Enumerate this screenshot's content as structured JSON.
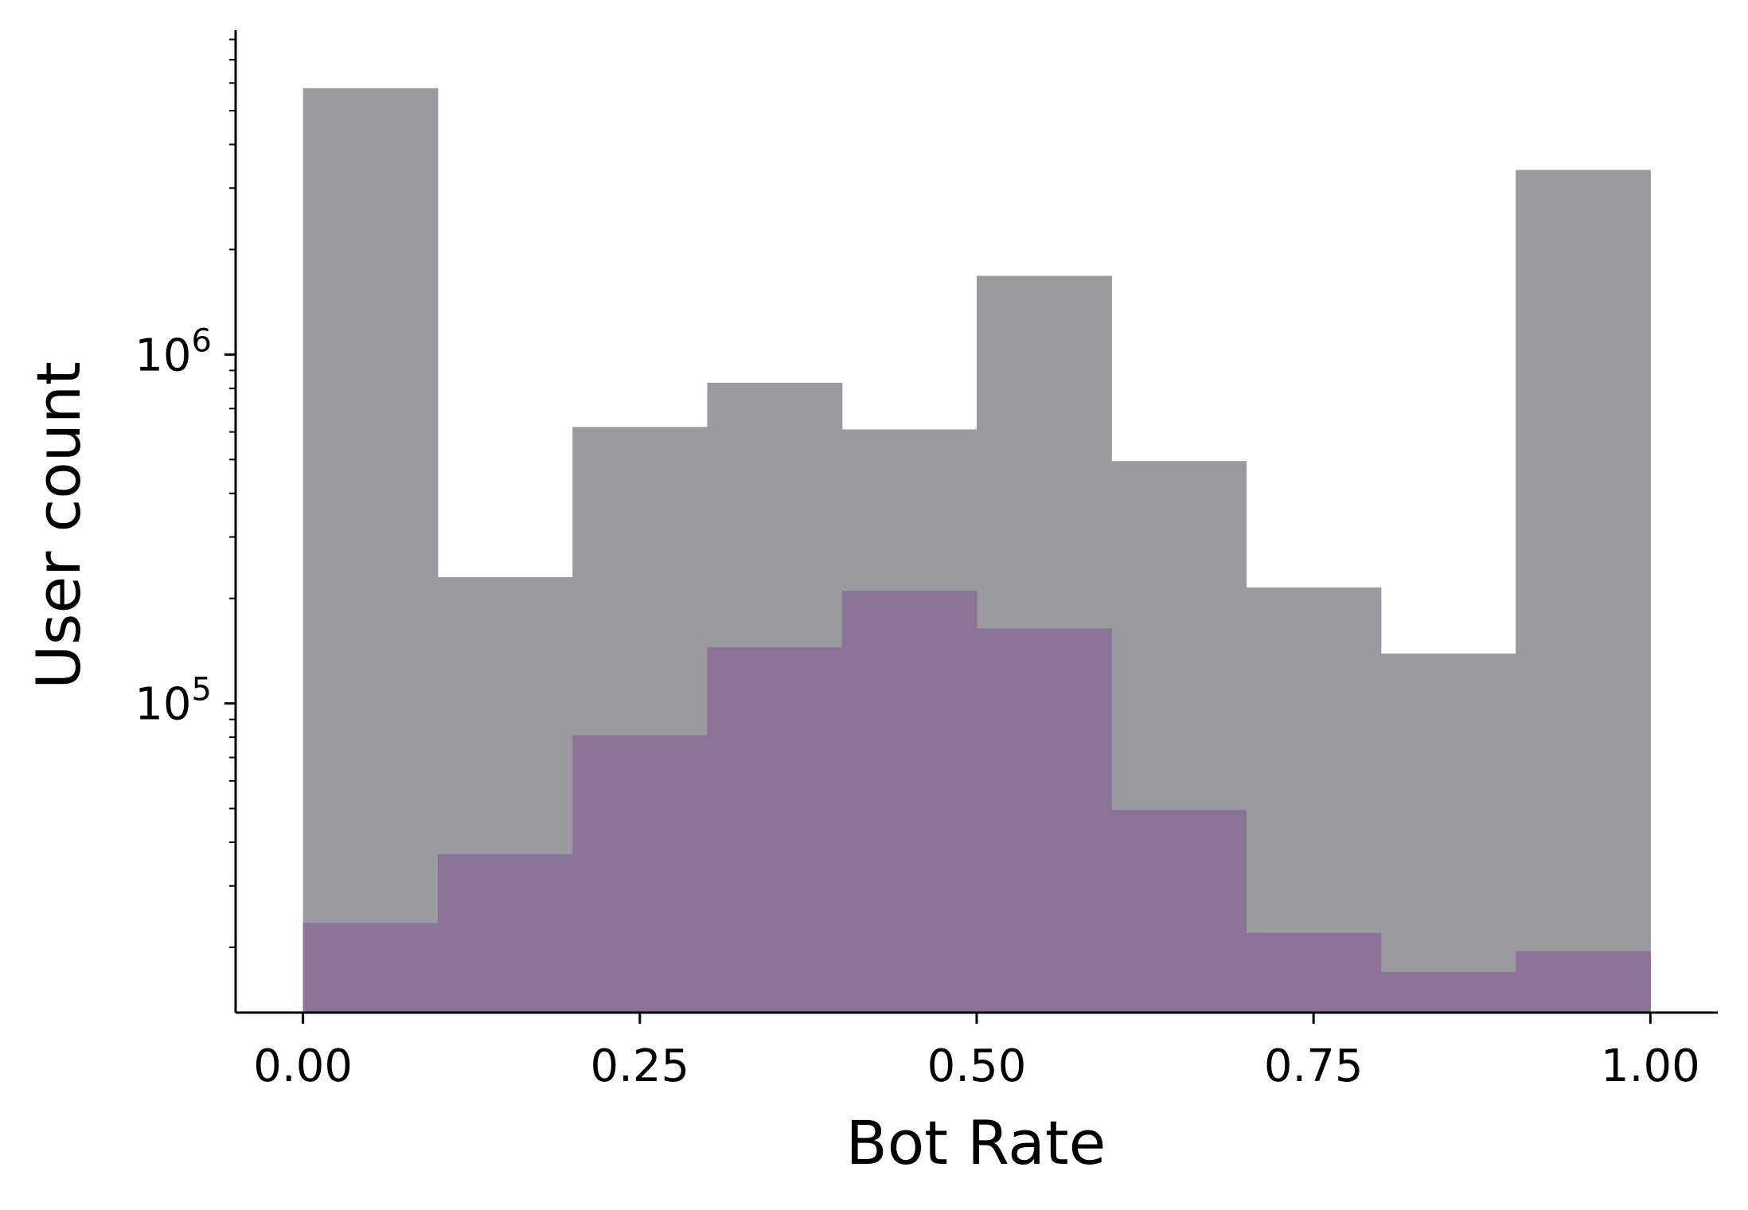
{
  "chart_data": {
    "type": "bar",
    "subtype": "histogram",
    "title": "",
    "xlabel": "Bot Rate",
    "ylabel": "User count",
    "yscale": "log",
    "xlim": [
      -0.05,
      1.05
    ],
    "ylim": [
      13000,
      8500000
    ],
    "grid": false,
    "legend": "none",
    "bin_edges": [
      0.0,
      0.1,
      0.2,
      0.3,
      0.4,
      0.5,
      0.6,
      0.7,
      0.8,
      0.9,
      1.0
    ],
    "x_ticks": [
      {
        "value": 0.0,
        "label": "0.00"
      },
      {
        "value": 0.25,
        "label": "0.25"
      },
      {
        "value": 0.5,
        "label": "0.50"
      },
      {
        "value": 0.75,
        "label": "0.75"
      },
      {
        "value": 1.0,
        "label": "1.00"
      }
    ],
    "y_ticks": [
      {
        "value": 100000,
        "base": "10",
        "exp": "5"
      },
      {
        "value": 1000000,
        "base": "10",
        "exp": "6"
      }
    ],
    "series": [
      {
        "color": "#9a9b9e",
        "values": [
          5800000,
          230000,
          620000,
          830000,
          610000,
          1680000,
          495000,
          215000,
          139000,
          3380000
        ]
      },
      {
        "color": "#8b7397",
        "values": [
          23500,
          37000,
          81000,
          145000,
          210000,
          164000,
          49500,
          22000,
          17000,
          19500
        ]
      }
    ]
  }
}
